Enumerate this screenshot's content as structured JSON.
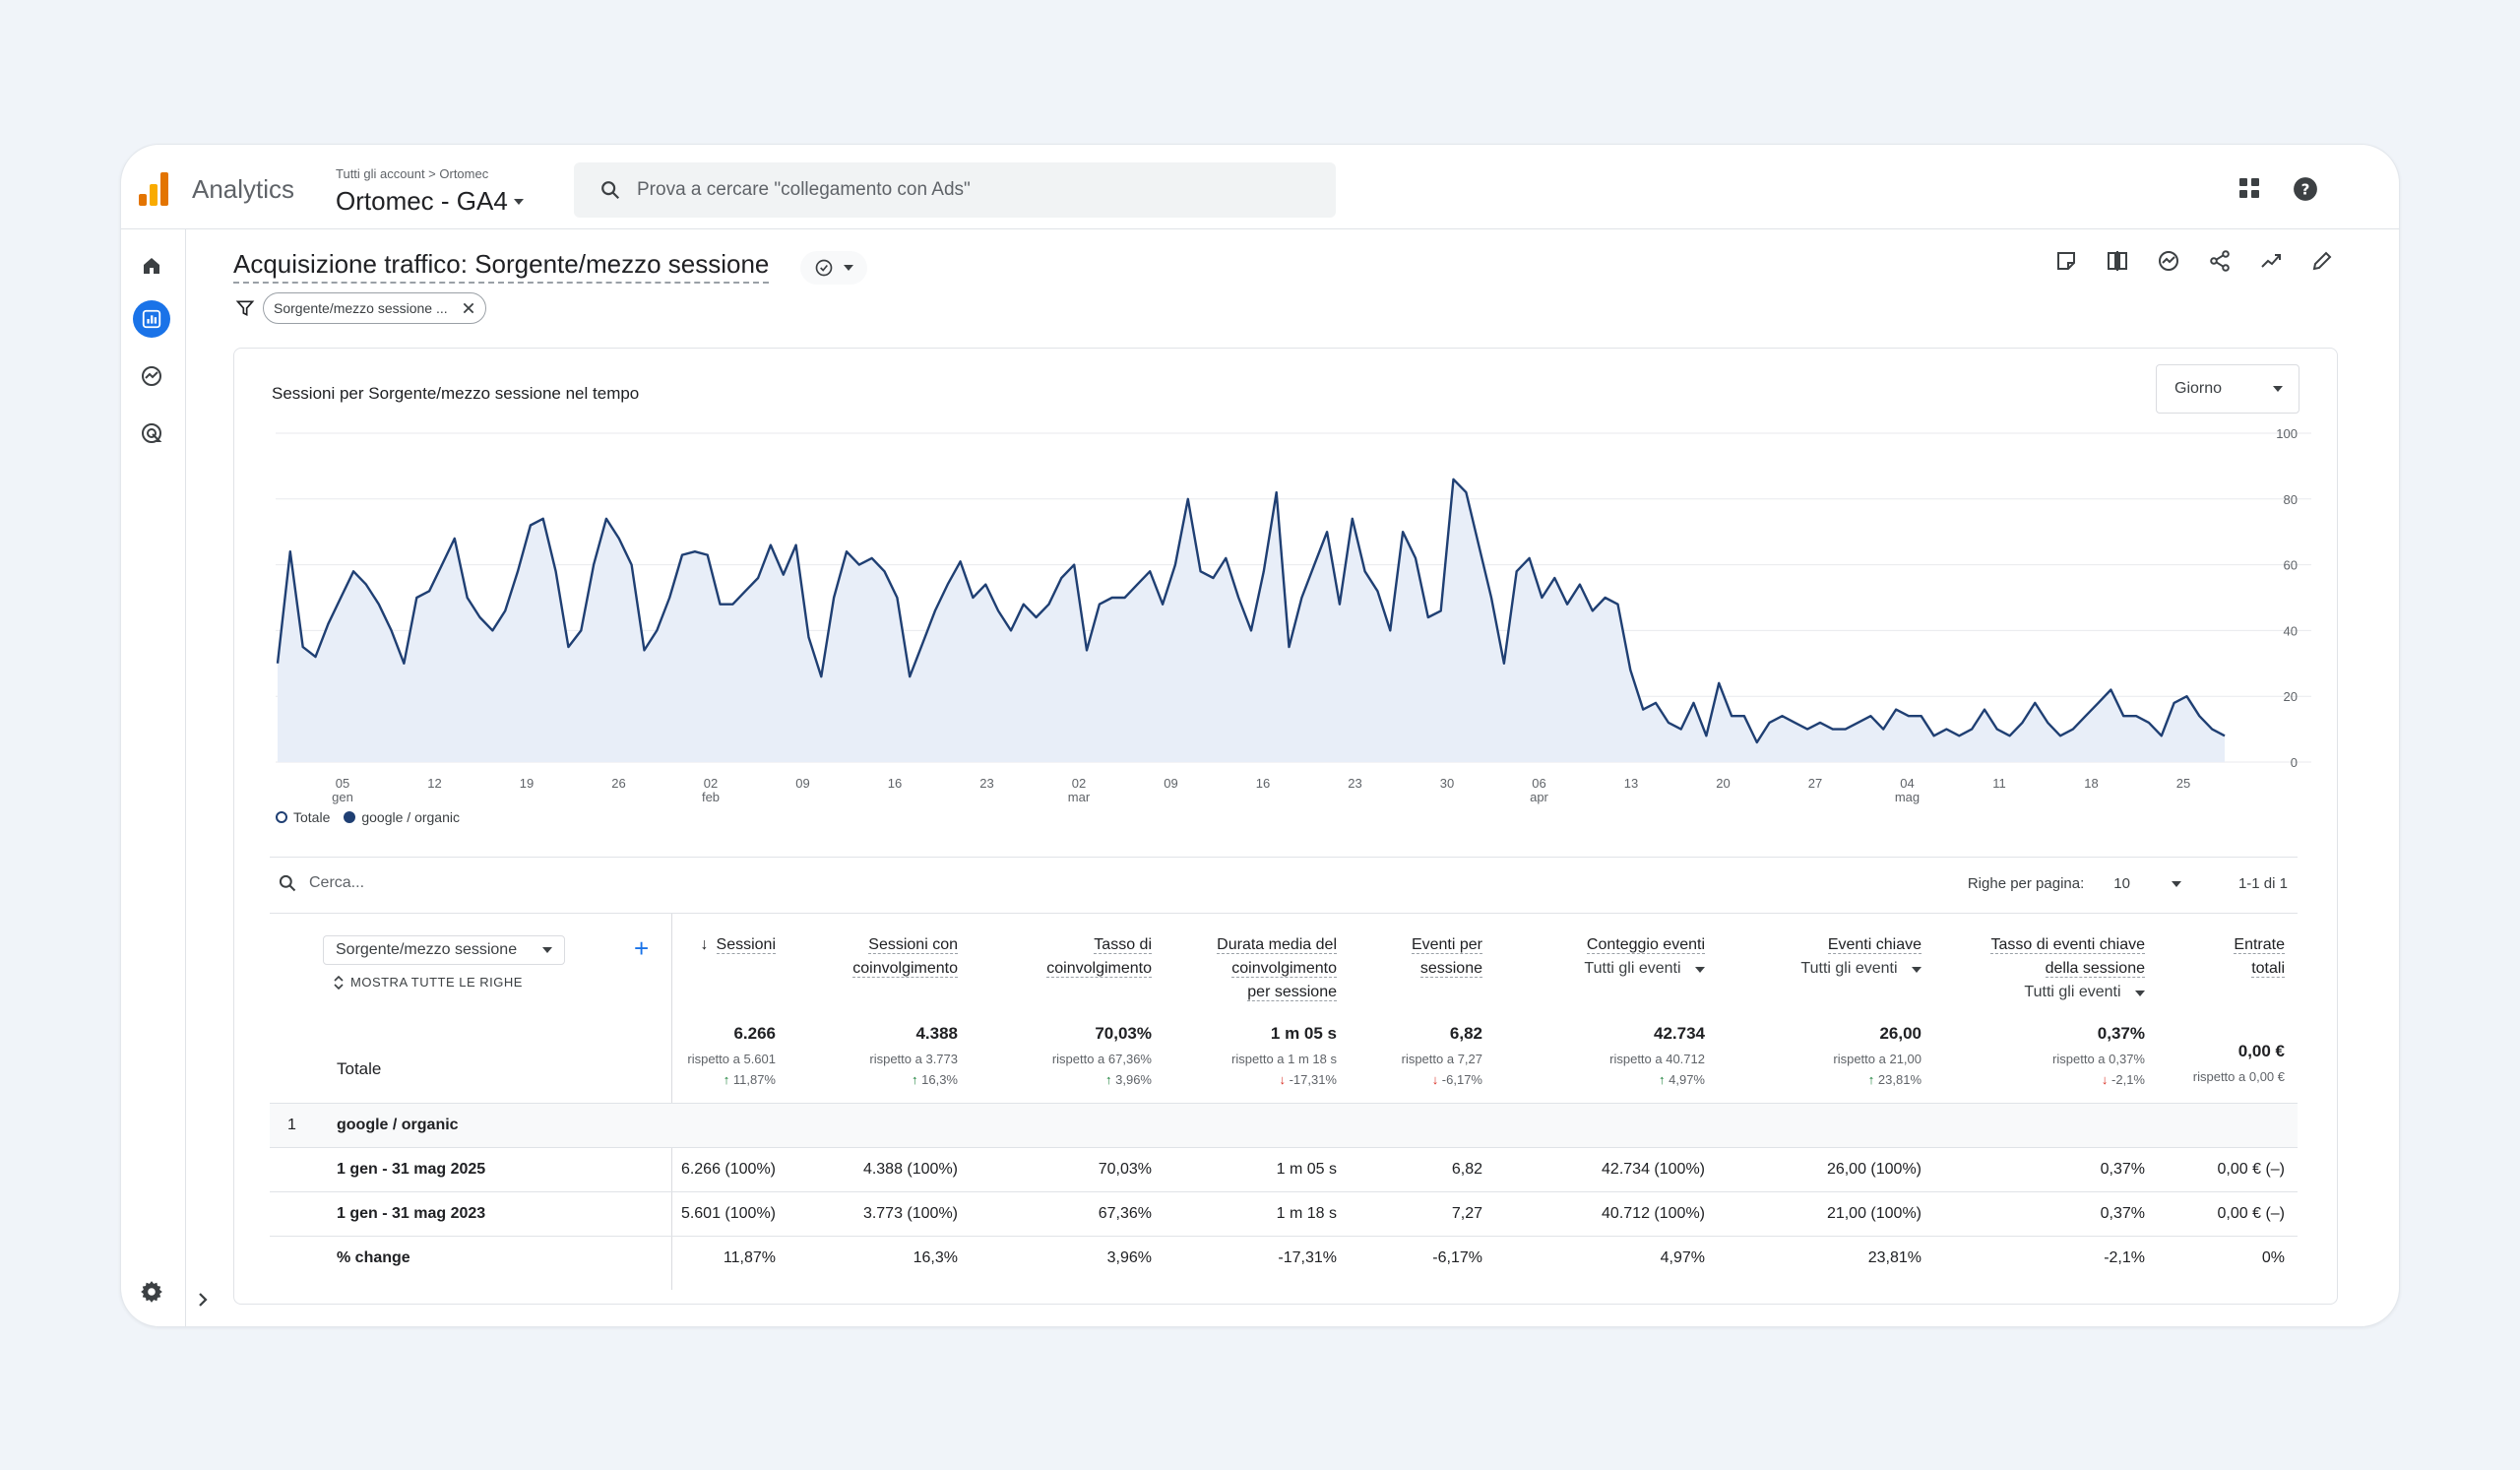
{
  "app": {
    "name": "Analytics",
    "breadcrumb": "Tutti gli account > Ortomec",
    "property": "Ortomec - GA4"
  },
  "search": {
    "placeholder": "Prova a cercare \"collegamento con Ads\""
  },
  "page": {
    "title": "Acquisizione traffico: Sorgente/mezzo sessione",
    "filter_chip": "Sorgente/mezzo sessione ..."
  },
  "chart": {
    "title": "Sessioni per Sorgente/mezzo sessione nel tempo",
    "granularity": "Giorno",
    "legend": [
      "Totale",
      "google / organic"
    ]
  },
  "chart_data": {
    "type": "line",
    "title": "Sessioni per Sorgente/mezzo sessione nel tempo",
    "ylim": [
      0,
      100
    ],
    "y_ticks": [
      "0",
      "20",
      "40",
      "60",
      "80",
      "100"
    ],
    "x_ticks": [
      {
        "label": "05",
        "sub": "gen"
      },
      {
        "label": "12"
      },
      {
        "label": "19"
      },
      {
        "label": "26"
      },
      {
        "label": "02",
        "sub": "feb"
      },
      {
        "label": "09"
      },
      {
        "label": "16"
      },
      {
        "label": "23"
      },
      {
        "label": "02",
        "sub": "mar"
      },
      {
        "label": "09"
      },
      {
        "label": "16"
      },
      {
        "label": "23"
      },
      {
        "label": "30"
      },
      {
        "label": "06",
        "sub": "apr"
      },
      {
        "label": "13"
      },
      {
        "label": "20"
      },
      {
        "label": "27"
      },
      {
        "label": "04",
        "sub": "mag"
      },
      {
        "label": "11"
      },
      {
        "label": "18"
      },
      {
        "label": "25"
      }
    ],
    "series": [
      {
        "name": "google / organic",
        "values": [
          30,
          64,
          35,
          32,
          42,
          50,
          58,
          54,
          48,
          40,
          30,
          50,
          52,
          60,
          68,
          50,
          44,
          40,
          46,
          58,
          72,
          74,
          58,
          35,
          40,
          60,
          74,
          68,
          60,
          34,
          40,
          50,
          63,
          64,
          63,
          48,
          48,
          52,
          56,
          66,
          57,
          66,
          38,
          26,
          50,
          64,
          60,
          62,
          58,
          50,
          26,
          36,
          46,
          54,
          61,
          50,
          54,
          46,
          40,
          48,
          44,
          48,
          56,
          60,
          34,
          48,
          50,
          50,
          54,
          58,
          48,
          60,
          80,
          58,
          56,
          62,
          50,
          40,
          58,
          82,
          35,
          50,
          60,
          70,
          48,
          74,
          58,
          52,
          40,
          70,
          62,
          44,
          46,
          86,
          82,
          66,
          50,
          30,
          58,
          62,
          50,
          56,
          48,
          54,
          46,
          50,
          48,
          28,
          16,
          18,
          12,
          10,
          18,
          8,
          24,
          14,
          14,
          6,
          12,
          14,
          12,
          10,
          12,
          10,
          10,
          12,
          14,
          10,
          16,
          14,
          14,
          8,
          10,
          8,
          10,
          16,
          10,
          8,
          12,
          18,
          12,
          8,
          10,
          14,
          18,
          22,
          14,
          14,
          12,
          8,
          18,
          20,
          14,
          10,
          8
        ]
      }
    ]
  },
  "table": {
    "search_placeholder": "Cerca...",
    "rows_per_page_label": "Righe per pagina:",
    "rows_per_page": "10",
    "pagination": "1-1 di 1",
    "dimension": "Sorgente/mezzo sessione",
    "show_all": "MOSTRA TUTTE LE RIGHE",
    "columns": [
      {
        "h1": "Sessioni",
        "h2": "",
        "h3": "",
        "sub": ""
      },
      {
        "h1": "Sessioni con",
        "h2": "coinvolgimento",
        "h3": "",
        "sub": ""
      },
      {
        "h1": "Tasso di",
        "h2": "coinvolgimento",
        "h3": "",
        "sub": ""
      },
      {
        "h1": "Durata media del",
        "h2": "coinvolgimento",
        "h3": "per sessione",
        "sub": ""
      },
      {
        "h1": "Eventi per",
        "h2": "sessione",
        "h3": "",
        "sub": ""
      },
      {
        "h1": "Conteggio eventi",
        "h2": "",
        "h3": "",
        "sub": "Tutti gli eventi"
      },
      {
        "h1": "Eventi chiave",
        "h2": "",
        "h3": "",
        "sub": "Tutti gli eventi"
      },
      {
        "h1": "Tasso di eventi chiave",
        "h2": "della sessione",
        "h3": "",
        "sub": "Tutti gli eventi"
      },
      {
        "h1": "Entrate",
        "h2": "totali",
        "h3": "",
        "sub": ""
      }
    ],
    "totals_label": "Totale",
    "totals": [
      {
        "value": "6.266",
        "compare": "rispetto a 5.601",
        "delta": "↑ 11,87%"
      },
      {
        "value": "4.388",
        "compare": "rispetto a 3.773",
        "delta": "↑ 16,3%"
      },
      {
        "value": "70,03%",
        "compare": "rispetto a 67,36%",
        "delta": "↑ 3,96%"
      },
      {
        "value": "1 m 05 s",
        "compare": "rispetto a 1 m 18 s",
        "delta": "↓ -17,31%"
      },
      {
        "value": "6,82",
        "compare": "rispetto a 7,27",
        "delta": "↓ -6,17%"
      },
      {
        "value": "42.734",
        "compare": "rispetto a 40.712",
        "delta": "↑ 4,97%"
      },
      {
        "value": "26,00",
        "compare": "rispetto a 21,00",
        "delta": "↑ 23,81%"
      },
      {
        "value": "0,37%",
        "compare": "rispetto a 0,37%",
        "delta": "↓ -2,1%"
      },
      {
        "value": "0,00 €",
        "compare": "rispetto a 0,00 €",
        "delta": ""
      }
    ],
    "group_index": "1",
    "group_label": "google / organic",
    "rows": [
      {
        "label": "1 gen - 31 mag 2025",
        "cells": [
          "6.266 (100%)",
          "4.388 (100%)",
          "70,03%",
          "1 m 05 s",
          "6,82",
          "42.734 (100%)",
          "26,00 (100%)",
          "0,37%",
          "0,00 € (–)"
        ]
      },
      {
        "label": "1 gen - 31 mag 2023",
        "cells": [
          "5.601 (100%)",
          "3.773 (100%)",
          "67,36%",
          "1 m 18 s",
          "7,27",
          "40.712 (100%)",
          "21,00 (100%)",
          "0,37%",
          "0,00 € (–)"
        ]
      },
      {
        "label": "% change",
        "cells": [
          "11,87%",
          "16,3%",
          "3,96%",
          "-17,31%",
          "-6,17%",
          "4,97%",
          "23,81%",
          "-2,1%",
          "0%"
        ]
      }
    ]
  },
  "colors": {
    "accent": "#1a73e8",
    "line": "#1f3f73",
    "fill": "#e8eef8",
    "up": "#188038",
    "down": "#d93025"
  }
}
